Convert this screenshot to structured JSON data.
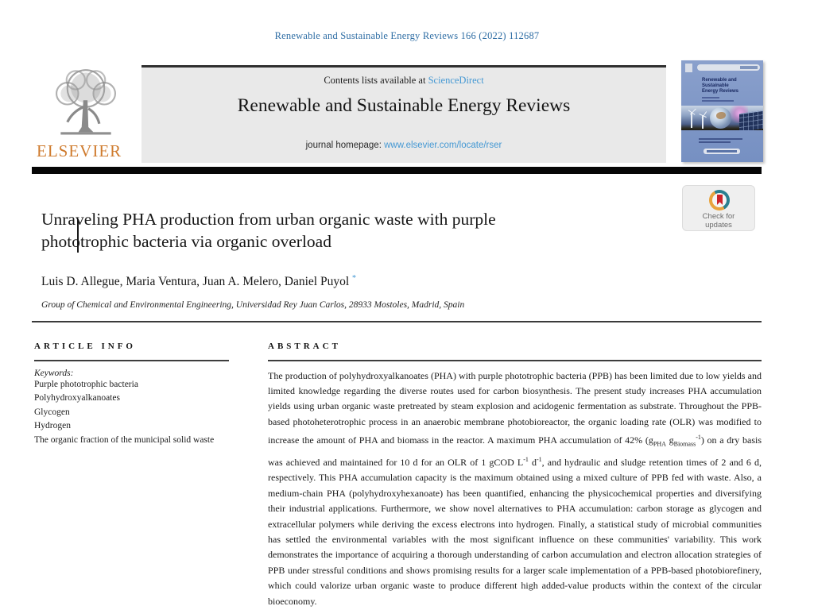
{
  "colors": {
    "citation_blue": "#2e6da4",
    "link_blue": "#4498d3",
    "elsevier_orange": "#cf7b2e",
    "banner_gray": "#e9e9e9",
    "bar_black": "#060606",
    "cover_blue": "#7e96c6",
    "badge_red": "#cc2229",
    "badge_teal": "#2a7f8f",
    "badge_yellow": "#e8a33d"
  },
  "citation": "Renewable and Sustainable Energy Reviews 166 (2022) 112687",
  "header": {
    "contents_prefix": "Contents lists available at ",
    "contents_link": "ScienceDirect",
    "journal_title": "Renewable and Sustainable Energy Reviews",
    "homepage_prefix": "journal homepage: ",
    "homepage_link": "www.elsevier.com/locate/rser",
    "elsevier_wordmark": "ELSEVIER",
    "cover_title_lines": [
      "Renewable and",
      "Sustainable",
      "Energy Reviews"
    ]
  },
  "badge": {
    "line1": "Check for",
    "line2": "updates"
  },
  "article": {
    "title_line1": "Unraveling PHA production from urban organic waste with purple",
    "title_line2": "phototrophic bacteria via organic overload",
    "authors": "Luis D. Allegue, Maria Ventura, Juan A. Melero, Daniel Puyol",
    "corresponding_mark": "*",
    "affiliation": "Group of Chemical and Environmental Engineering, Universidad Rey Juan Carlos, 28933 Mostoles, Madrid, Spain"
  },
  "article_info": {
    "heading": "ARTICLE INFO",
    "keywords_label": "Keywords:",
    "keywords": [
      "Purple phototrophic bacteria",
      "Polyhydroxyalkanoates",
      "Glycogen",
      "Hydrogen",
      "The organic fraction of the municipal solid waste"
    ]
  },
  "abstract": {
    "heading": "ABSTRACT",
    "segments": [
      {
        "t": "The production of polyhydroxyalkanoates (PHA) with purple phototrophic bacteria (PPB) has been limited due to low yields and limited knowledge regarding the diverse routes used for carbon biosynthesis. The present study increases PHA accumulation yields using urban organic waste pretreated by steam explosion and acidogenic fermentation as substrate. Throughout the PPB-based photoheterotrophic process in an anaerobic membrane photobioreactor, the organic loading rate (OLR) was modified to increase the amount of PHA and biomass in the reactor. A maximum PHA accumulation of 42% (g"
      },
      {
        "t": "PHA",
        "s": "sub"
      },
      {
        "t": " g"
      },
      {
        "t": "Biomass",
        "s": "sub"
      },
      {
        "t": "-1",
        "s": "sup"
      },
      {
        "t": ") on a dry basis was achieved and maintained for 10 d for an OLR of 1 gCOD L"
      },
      {
        "t": "-1",
        "s": "sup"
      },
      {
        "t": " d"
      },
      {
        "t": "-1",
        "s": "sup"
      },
      {
        "t": ", and hydraulic and sludge retention times of 2 and 6 d, respectively. This PHA accumulation capacity is the maximum obtained using a mixed culture of PPB fed with waste. Also, a medium-chain PHA (polyhydroxyhexanoate) has been quantified, enhancing the physicochemical properties and diversifying their industrial applications. Furthermore, we show novel alternatives to PHA accumulation: carbon storage as glycogen and extracellular polymers while deriving the excess electrons into hydrogen. Finally, a statistical study of microbial communities has settled the environmental variables with the most significant influence on these communities' variability. This work demonstrates the importance of acquiring a thorough understanding of carbon accumulation and electron allocation strategies of PPB under stressful conditions and shows promising results for a larger scale implementation of a PPB-based photobiorefinery, which could valorize urban organic waste to produce different high added-value products within the context of the circular bioeconomy."
      }
    ]
  }
}
